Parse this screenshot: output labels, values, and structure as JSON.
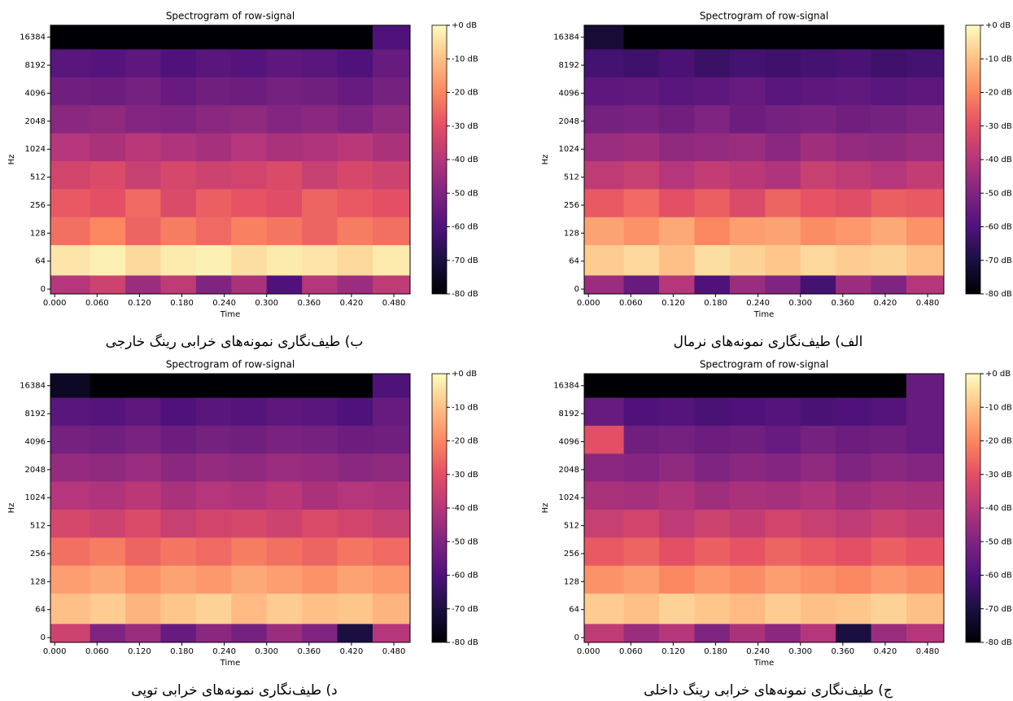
{
  "chart_data": [
    {
      "type": "heatmap",
      "title": "Spectrogram of row-signal",
      "caption": "ب) طیف‌نگاری نمونه‌های خرابی رینگ خارجی",
      "xlabel": "Time",
      "ylabel": "Hz",
      "yscale": "symlog",
      "linthresh": 64,
      "colormap": "magma",
      "xlim": [
        -0.006,
        0.503
      ],
      "ylim": [
        -11,
        22050
      ],
      "xticks": [
        {
          "value": 0,
          "label": "0.000"
        },
        {
          "value": 0.06,
          "label": "0.060"
        },
        {
          "value": 0.12,
          "label": "0.120"
        },
        {
          "value": 0.18,
          "label": "0.180"
        },
        {
          "value": 0.24,
          "label": "0.240"
        },
        {
          "value": 0.3,
          "label": "0.300"
        },
        {
          "value": 0.36,
          "label": "0.360"
        },
        {
          "value": 0.42,
          "label": "0.420"
        },
        {
          "value": 0.48,
          "label": "0.480"
        }
      ],
      "yticks": [
        0,
        64,
        128,
        256,
        512,
        1024,
        2048,
        4096,
        8192,
        16384
      ],
      "clim": [
        -80,
        0
      ],
      "cticks": [
        {
          "value": 0,
          "label": "+0 dB"
        },
        {
          "value": -10,
          "label": "-10 dB"
        },
        {
          "value": -20,
          "label": "-20 dB"
        },
        {
          "value": -30,
          "label": "-30 dB"
        },
        {
          "value": -40,
          "label": "-40 dB"
        },
        {
          "value": -50,
          "label": "-50 dB"
        },
        {
          "value": -60,
          "label": "-60 dB"
        },
        {
          "value": -70,
          "label": "-70 dB"
        },
        {
          "value": -80,
          "label": "-80 dB"
        }
      ],
      "x_edges": [
        -0.006,
        0.05,
        0.1,
        0.15,
        0.2,
        0.25,
        0.3,
        0.35,
        0.4,
        0.45,
        0.503
      ],
      "y_edges": [
        -11,
        32,
        96,
        192,
        384,
        768,
        1536,
        3072,
        6144,
        12288,
        22050
      ],
      "z": [
        [
          -40,
          -35,
          -45,
          -38,
          -50,
          -42,
          -60,
          -40,
          -45,
          -38
        ],
        [
          -4,
          -2,
          -6,
          -3,
          -2,
          -5,
          -3,
          -4,
          -6,
          -3
        ],
        [
          -24,
          -20,
          -26,
          -22,
          -25,
          -21,
          -23,
          -26,
          -22,
          -24
        ],
        [
          -28,
          -30,
          -25,
          -32,
          -27,
          -29,
          -31,
          -26,
          -28,
          -30
        ],
        [
          -34,
          -32,
          -36,
          -33,
          -35,
          -34,
          -32,
          -36,
          -33,
          -35
        ],
        [
          -40,
          -42,
          -39,
          -41,
          -43,
          -40,
          -42,
          -41,
          -39,
          -42
        ],
        [
          -48,
          -47,
          -49,
          -50,
          -48,
          -47,
          -49,
          -48,
          -50,
          -47
        ],
        [
          -53,
          -54,
          -52,
          -55,
          -53,
          -54,
          -52,
          -53,
          -55,
          -52
        ],
        [
          -58,
          -59,
          -57,
          -60,
          -58,
          -59,
          -57,
          -58,
          -60,
          -55
        ],
        [
          -80,
          -80,
          -80,
          -80,
          -80,
          -80,
          -80,
          -80,
          -80,
          -60
        ]
      ]
    },
    {
      "type": "heatmap",
      "title": "Spectrogram of row-signal",
      "caption": "الف) طیف‌نگاری نمونه‌های نرمال",
      "xlabel": "Time",
      "ylabel": "Hz",
      "yscale": "symlog",
      "linthresh": 64,
      "colormap": "magma",
      "xlim": [
        -0.006,
        0.503
      ],
      "ylim": [
        -11,
        22050
      ],
      "xticks": [
        {
          "value": 0,
          "label": "0.000"
        },
        {
          "value": 0.06,
          "label": "0.060"
        },
        {
          "value": 0.12,
          "label": "0.120"
        },
        {
          "value": 0.18,
          "label": "0.180"
        },
        {
          "value": 0.24,
          "label": "0.240"
        },
        {
          "value": 0.3,
          "label": "0.300"
        },
        {
          "value": 0.36,
          "label": "0.360"
        },
        {
          "value": 0.42,
          "label": "0.420"
        },
        {
          "value": 0.48,
          "label": "0.480"
        }
      ],
      "yticks": [
        0,
        64,
        128,
        256,
        512,
        1024,
        2048,
        4096,
        8192,
        16384
      ],
      "clim": [
        -80,
        0
      ],
      "cticks": [
        {
          "value": 0,
          "label": "+0 dB"
        },
        {
          "value": -10,
          "label": "-10 dB"
        },
        {
          "value": -20,
          "label": "-20 dB"
        },
        {
          "value": -30,
          "label": "-30 dB"
        },
        {
          "value": -40,
          "label": "-40 dB"
        },
        {
          "value": -50,
          "label": "-50 dB"
        },
        {
          "value": -60,
          "label": "-60 dB"
        },
        {
          "value": -70,
          "label": "-70 dB"
        },
        {
          "value": -80,
          "label": "-80 dB"
        }
      ],
      "x_edges": [
        -0.006,
        0.05,
        0.1,
        0.15,
        0.2,
        0.25,
        0.3,
        0.35,
        0.4,
        0.45,
        0.503
      ],
      "y_edges": [
        -11,
        32,
        96,
        192,
        384,
        768,
        1536,
        3072,
        6144,
        12288,
        22050
      ],
      "z": [
        [
          -45,
          -55,
          -40,
          -60,
          -45,
          -50,
          -62,
          -45,
          -50,
          -40
        ],
        [
          -8,
          -6,
          -10,
          -5,
          -7,
          -9,
          -6,
          -8,
          -7,
          -10
        ],
        [
          -15,
          -18,
          -14,
          -20,
          -16,
          -15,
          -19,
          -17,
          -14,
          -18
        ],
        [
          -28,
          -25,
          -30,
          -27,
          -32,
          -26,
          -29,
          -31,
          -27,
          -28
        ],
        [
          -38,
          -36,
          -40,
          -37,
          -39,
          -41,
          -36,
          -38,
          -40,
          -37
        ],
        [
          -45,
          -44,
          -47,
          -46,
          -45,
          -48,
          -44,
          -46,
          -47,
          -45
        ],
        [
          -52,
          -51,
          -53,
          -50,
          -54,
          -52,
          -51,
          -53,
          -52,
          -50
        ],
        [
          -57,
          -56,
          -58,
          -57,
          -55,
          -58,
          -57,
          -56,
          -58,
          -57
        ],
        [
          -62,
          -63,
          -61,
          -64,
          -62,
          -63,
          -62,
          -61,
          -63,
          -62
        ],
        [
          -72,
          -80,
          -80,
          -80,
          -80,
          -80,
          -80,
          -80,
          -80,
          -80
        ]
      ]
    },
    {
      "type": "heatmap",
      "title": "Spectrogram of row-signal",
      "caption": "د) طیف‌نگاری نمونه‌های خرابی توپی",
      "xlabel": "Time",
      "ylabel": "Hz",
      "yscale": "symlog",
      "linthresh": 64,
      "colormap": "magma",
      "xlim": [
        -0.006,
        0.503
      ],
      "ylim": [
        -11,
        22050
      ],
      "xticks": [
        {
          "value": 0,
          "label": "0.000"
        },
        {
          "value": 0.06,
          "label": "0.060"
        },
        {
          "value": 0.12,
          "label": "0.120"
        },
        {
          "value": 0.18,
          "label": "0.180"
        },
        {
          "value": 0.24,
          "label": "0.240"
        },
        {
          "value": 0.3,
          "label": "0.300"
        },
        {
          "value": 0.36,
          "label": "0.360"
        },
        {
          "value": 0.42,
          "label": "0.420"
        },
        {
          "value": 0.48,
          "label": "0.480"
        }
      ],
      "yticks": [
        0,
        64,
        128,
        256,
        512,
        1024,
        2048,
        4096,
        8192,
        16384
      ],
      "clim": [
        -80,
        0
      ],
      "cticks": [
        {
          "value": 0,
          "label": "+0 dB"
        },
        {
          "value": -10,
          "label": "-10 dB"
        },
        {
          "value": -20,
          "label": "-20 dB"
        },
        {
          "value": -30,
          "label": "-30 dB"
        },
        {
          "value": -40,
          "label": "-40 dB"
        },
        {
          "value": -50,
          "label": "-50 dB"
        },
        {
          "value": -60,
          "label": "-60 dB"
        },
        {
          "value": -70,
          "label": "-70 dB"
        },
        {
          "value": -80,
          "label": "-80 dB"
        }
      ],
      "x_edges": [
        -0.006,
        0.05,
        0.1,
        0.15,
        0.2,
        0.25,
        0.3,
        0.35,
        0.4,
        0.45,
        0.503
      ],
      "y_edges": [
        -11,
        32,
        96,
        192,
        384,
        768,
        1536,
        3072,
        6144,
        12288,
        22050
      ],
      "z": [
        [
          -35,
          -50,
          -45,
          -55,
          -48,
          -52,
          -45,
          -50,
          -70,
          -40
        ],
        [
          -10,
          -8,
          -12,
          -9,
          -7,
          -11,
          -8,
          -10,
          -9,
          -12
        ],
        [
          -16,
          -14,
          -18,
          -15,
          -17,
          -14,
          -16,
          -18,
          -15,
          -17
        ],
        [
          -24,
          -22,
          -26,
          -23,
          -25,
          -22,
          -24,
          -26,
          -23,
          -25
        ],
        [
          -33,
          -35,
          -32,
          -36,
          -34,
          -33,
          -35,
          -32,
          -34,
          -36
        ],
        [
          -40,
          -41,
          -39,
          -42,
          -40,
          -41,
          -39,
          -42,
          -40,
          -41
        ],
        [
          -46,
          -47,
          -45,
          -48,
          -46,
          -47,
          -45,
          -46,
          -48,
          -47
        ],
        [
          -52,
          -53,
          -51,
          -54,
          -52,
          -53,
          -51,
          -52,
          -54,
          -53
        ],
        [
          -58,
          -59,
          -57,
          -60,
          -58,
          -59,
          -57,
          -58,
          -60,
          -55
        ],
        [
          -75,
          -80,
          -80,
          -80,
          -80,
          -80,
          -80,
          -80,
          -80,
          -60
        ]
      ]
    },
    {
      "type": "heatmap",
      "title": "Spectrogram of row-signal",
      "caption": "ج) طیف‌نگاری نمونه‌های خرابی رینگ داخلی",
      "xlabel": "Time",
      "ylabel": "Hz",
      "yscale": "symlog",
      "linthresh": 64,
      "colormap": "magma",
      "xlim": [
        -0.006,
        0.503
      ],
      "ylim": [
        -11,
        22050
      ],
      "xticks": [
        {
          "value": 0,
          "label": "0.000"
        },
        {
          "value": 0.06,
          "label": "0.060"
        },
        {
          "value": 0.12,
          "label": "0.120"
        },
        {
          "value": 0.18,
          "label": "0.180"
        },
        {
          "value": 0.24,
          "label": "0.240"
        },
        {
          "value": 0.3,
          "label": "0.300"
        },
        {
          "value": 0.36,
          "label": "0.360"
        },
        {
          "value": 0.42,
          "label": "0.420"
        },
        {
          "value": 0.48,
          "label": "0.480"
        }
      ],
      "yticks": [
        0,
        64,
        128,
        256,
        512,
        1024,
        2048,
        4096,
        8192,
        16384
      ],
      "clim": [
        -80,
        0
      ],
      "cticks": [
        {
          "value": 0,
          "label": "+0 dB"
        },
        {
          "value": -10,
          "label": "-10 dB"
        },
        {
          "value": -20,
          "label": "-20 dB"
        },
        {
          "value": -30,
          "label": "-30 dB"
        },
        {
          "value": -40,
          "label": "-40 dB"
        },
        {
          "value": -50,
          "label": "-50 dB"
        },
        {
          "value": -60,
          "label": "-60 dB"
        },
        {
          "value": -70,
          "label": "-70 dB"
        },
        {
          "value": -80,
          "label": "-80 dB"
        }
      ],
      "x_edges": [
        -0.006,
        0.05,
        0.1,
        0.15,
        0.2,
        0.25,
        0.3,
        0.35,
        0.4,
        0.45,
        0.503
      ],
      "y_edges": [
        -11,
        32,
        96,
        192,
        384,
        768,
        1536,
        3072,
        6144,
        12288,
        22050
      ],
      "z": [
        [
          -38,
          -45,
          -40,
          -50,
          -42,
          -48,
          -40,
          -70,
          -45,
          -40
        ],
        [
          -8,
          -10,
          -7,
          -9,
          -11,
          -8,
          -10,
          -9,
          -7,
          -10
        ],
        [
          -18,
          -16,
          -20,
          -17,
          -19,
          -16,
          -18,
          -20,
          -17,
          -19
        ],
        [
          -28,
          -26,
          -30,
          -27,
          -29,
          -26,
          -28,
          -30,
          -27,
          -29
        ],
        [
          -36,
          -34,
          -38,
          -35,
          -37,
          -34,
          -36,
          -38,
          -35,
          -37
        ],
        [
          -42,
          -43,
          -41,
          -44,
          -42,
          -43,
          -41,
          -44,
          -42,
          -43
        ],
        [
          -48,
          -49,
          -47,
          -50,
          -48,
          -49,
          -47,
          -50,
          -48,
          -49
        ],
        [
          -30,
          -53,
          -52,
          -54,
          -53,
          -55,
          -52,
          -54,
          -53,
          -55
        ],
        [
          -55,
          -60,
          -59,
          -61,
          -60,
          -59,
          -61,
          -60,
          -59,
          -55
        ],
        [
          -80,
          -80,
          -80,
          -80,
          -80,
          -80,
          -80,
          -80,
          -80,
          -55
        ]
      ]
    }
  ]
}
